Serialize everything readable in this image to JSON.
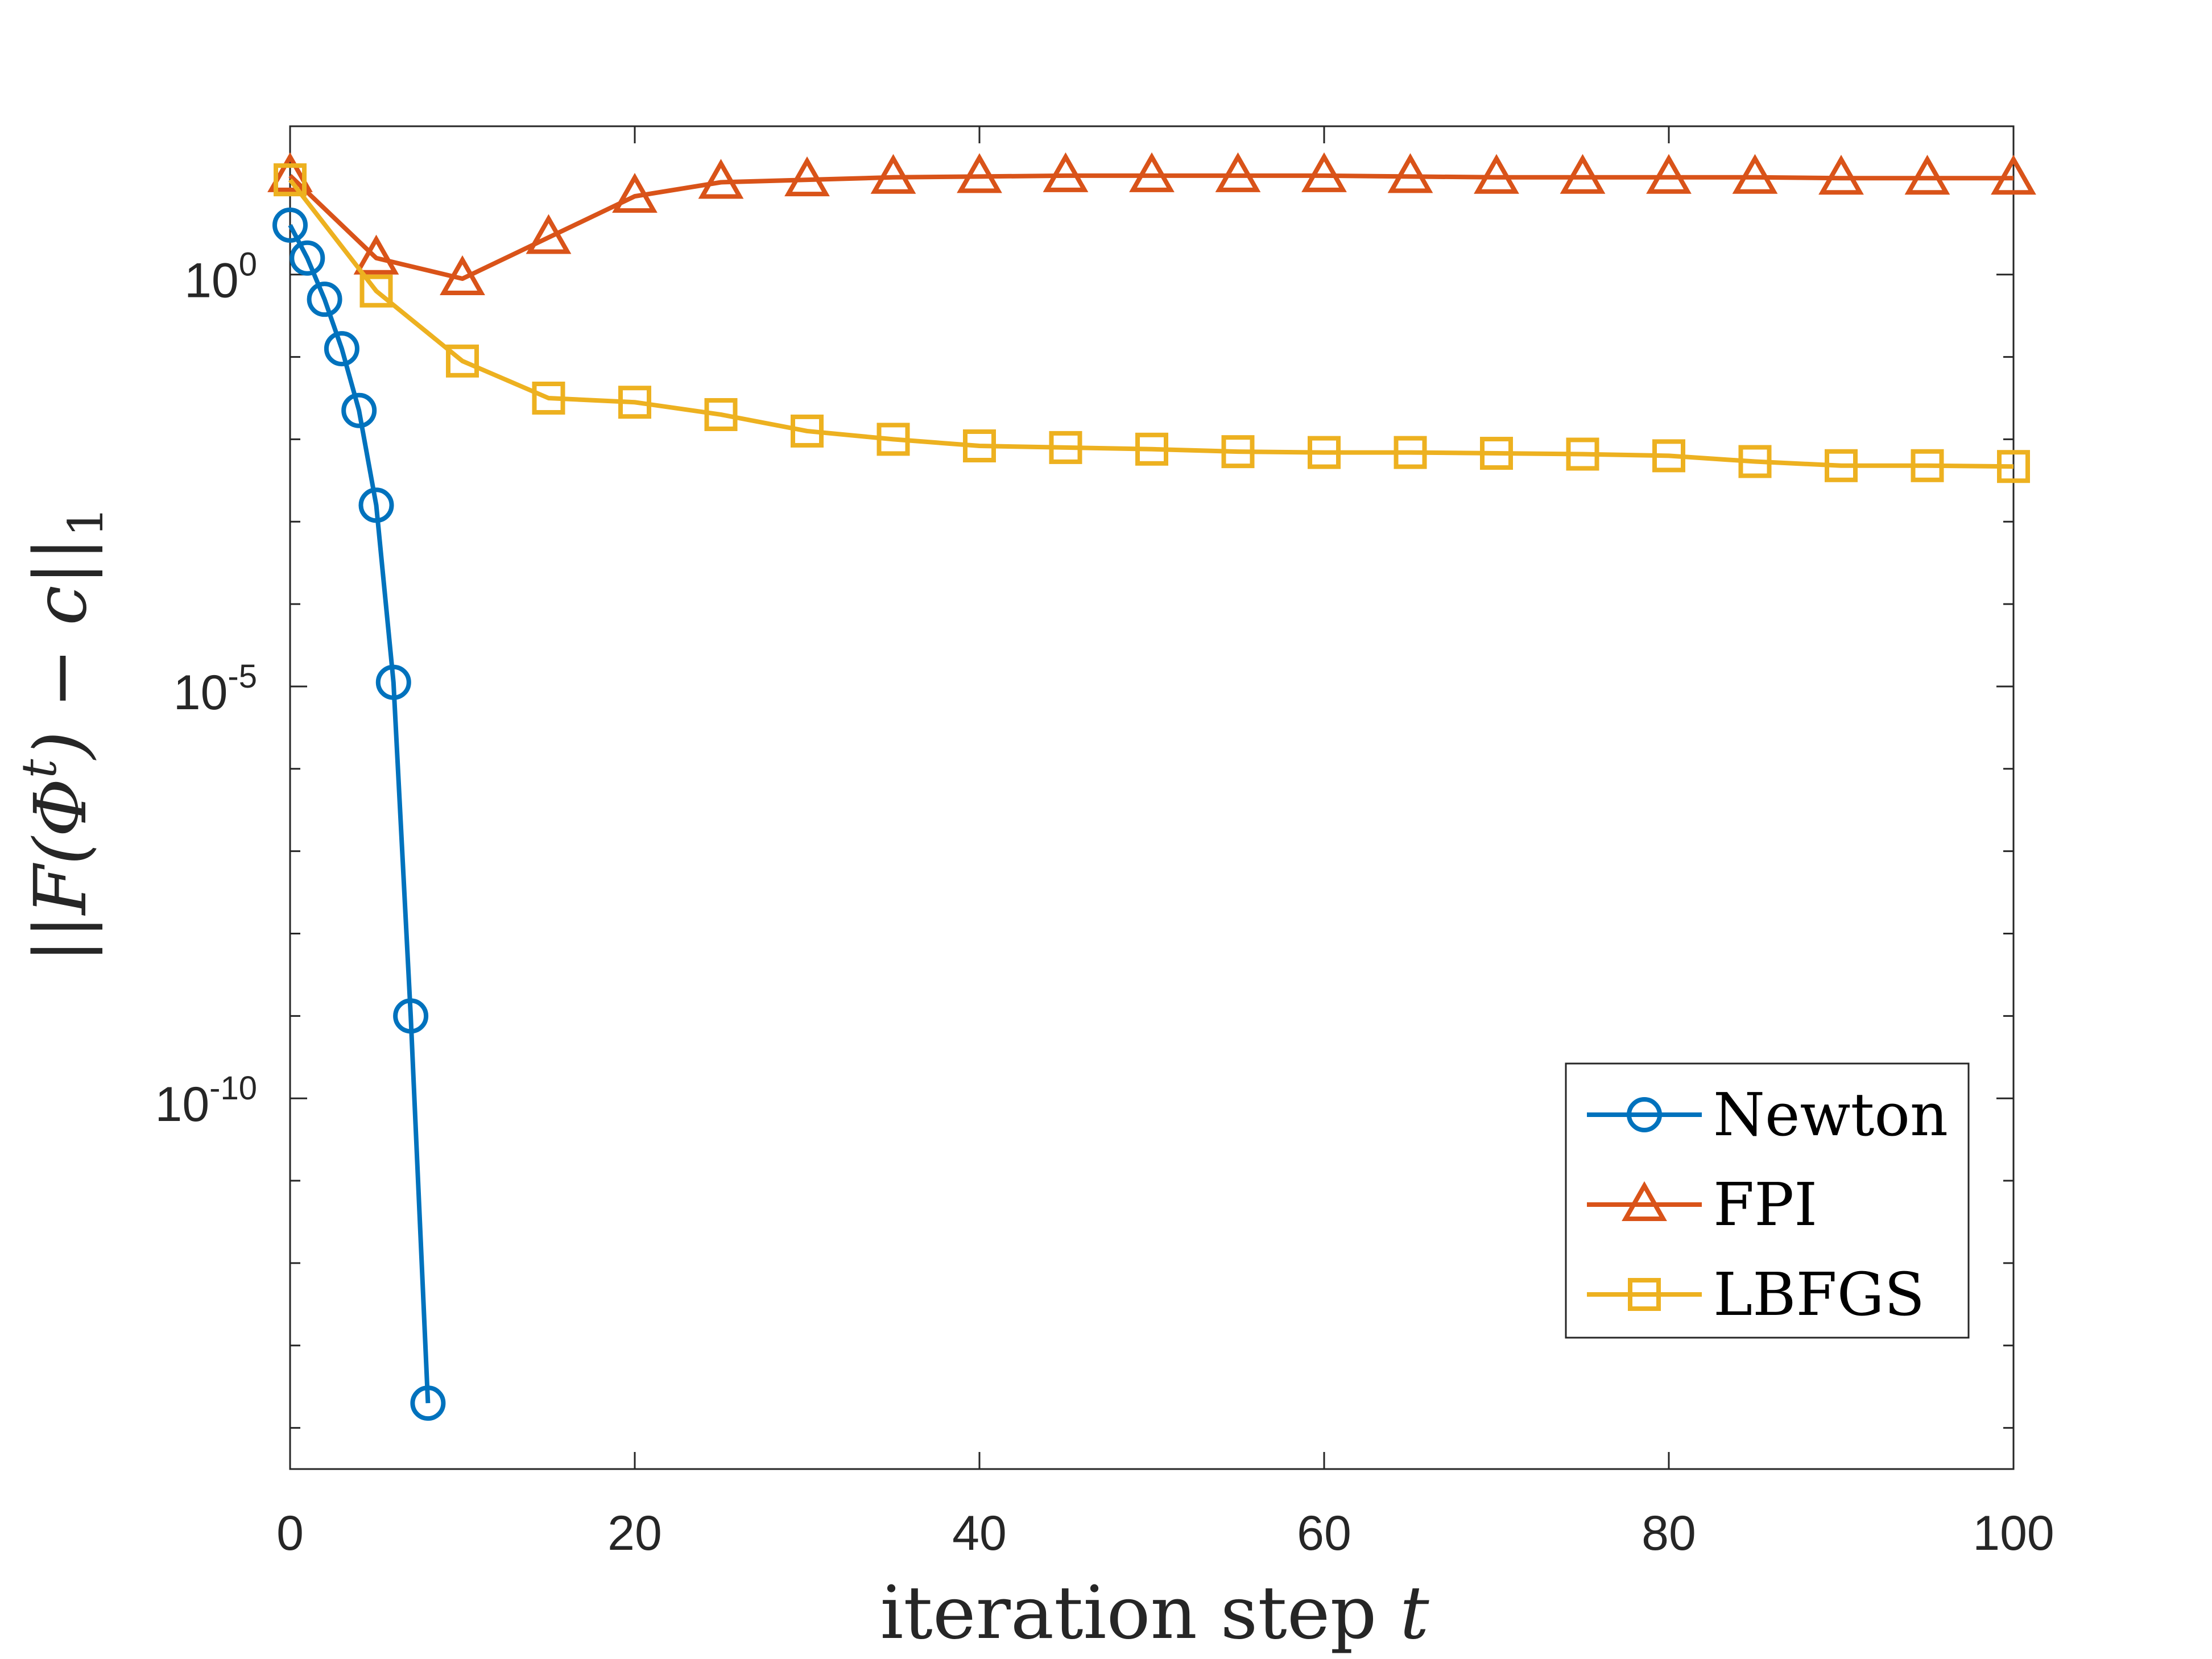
{
  "chart_data": {
    "type": "line",
    "title": "",
    "xlabel": "iteration step t",
    "ylabel": "||F(Φ^t) − c||_1",
    "ylabel_parts": {
      "pre": "||F(Φ",
      "sup": "t",
      "mid": ") − c||",
      "sub": "1"
    },
    "xlabel_parts": {
      "pre": "iteration step ",
      "var": "t"
    },
    "y_scale": "log",
    "xlim": [
      0,
      100
    ],
    "ylim_log10": [
      -14.5,
      1.8
    ],
    "x_ticks": [
      0,
      20,
      40,
      60,
      80,
      100
    ],
    "x_tick_labels": [
      "0",
      "20",
      "40",
      "60",
      "80",
      "100"
    ],
    "y_ticks_log10": [
      0,
      -5,
      -10
    ],
    "y_tick_labels": [
      {
        "base": "10",
        "exp": "0"
      },
      {
        "base": "10",
        "exp": "-5"
      },
      {
        "base": "10",
        "exp": "-10"
      }
    ],
    "y_minor_ticks_log10": [
      1,
      -1,
      -2,
      -3,
      -4,
      -6,
      -7,
      -8,
      -9,
      -11,
      -12,
      -13,
      -14
    ],
    "grid": false,
    "legend_position": "bottom-right",
    "series": [
      {
        "name": "Newton",
        "color": "#0072BD",
        "marker": "circle",
        "x": [
          0,
          1,
          2,
          3,
          4,
          5,
          6,
          7,
          8
        ],
        "log10_y": [
          0.6,
          0.2,
          -0.3,
          -0.9,
          -1.65,
          -2.8,
          -4.95,
          -9.0,
          -13.7
        ]
      },
      {
        "name": "FPI",
        "color": "#D95319",
        "marker": "triangle",
        "x": [
          0,
          5,
          10,
          15,
          20,
          25,
          30,
          35,
          40,
          45,
          50,
          55,
          60,
          65,
          70,
          75,
          80,
          85,
          90,
          95,
          100
        ],
        "log10_y": [
          1.2,
          0.2,
          -0.05,
          0.45,
          0.95,
          1.12,
          1.15,
          1.18,
          1.19,
          1.2,
          1.2,
          1.2,
          1.2,
          1.19,
          1.18,
          1.18,
          1.18,
          1.18,
          1.17,
          1.17,
          1.17
        ]
      },
      {
        "name": "LBFGS",
        "color": "#EDB120",
        "marker": "square",
        "x": [
          0,
          5,
          10,
          15,
          20,
          25,
          30,
          35,
          40,
          45,
          50,
          55,
          60,
          65,
          70,
          75,
          80,
          85,
          90,
          95,
          100
        ],
        "log10_y": [
          1.15,
          -0.2,
          -1.05,
          -1.5,
          -1.55,
          -1.7,
          -1.9,
          -2.0,
          -2.08,
          -2.1,
          -2.12,
          -2.15,
          -2.16,
          -2.16,
          -2.17,
          -2.18,
          -2.2,
          -2.27,
          -2.32,
          -2.32,
          -2.33
        ]
      }
    ]
  }
}
